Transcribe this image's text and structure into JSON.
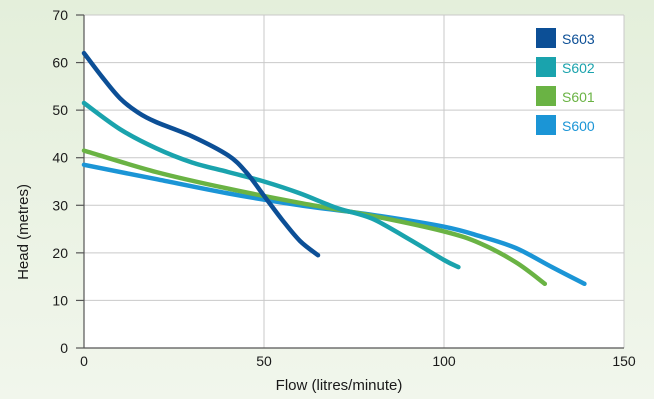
{
  "chart_data": {
    "type": "line",
    "xlabel": "Flow (litres/minute)",
    "ylabel": "Head (metres)",
    "xlim": [
      0,
      150
    ],
    "ylim": [
      0,
      70
    ],
    "x_ticks": [
      0,
      50,
      100,
      150
    ],
    "y_ticks": [
      0,
      10,
      20,
      30,
      40,
      50,
      60,
      70
    ],
    "grid": true,
    "legend_position": "top-right",
    "series": [
      {
        "name": "S603",
        "color": "#0c4f96",
        "points": [
          [
            0,
            62
          ],
          [
            5,
            57
          ],
          [
            10,
            52.5
          ],
          [
            15,
            49.5
          ],
          [
            20,
            47.5
          ],
          [
            30,
            44.5
          ],
          [
            40,
            40.5
          ],
          [
            45,
            37
          ],
          [
            50,
            32
          ],
          [
            55,
            27
          ],
          [
            60,
            22.5
          ],
          [
            65,
            19.5
          ]
        ]
      },
      {
        "name": "S602",
        "color": "#1aa3ad",
        "points": [
          [
            0,
            51.5
          ],
          [
            10,
            46
          ],
          [
            20,
            42
          ],
          [
            30,
            39
          ],
          [
            40,
            37
          ],
          [
            50,
            35
          ],
          [
            60,
            32.5
          ],
          [
            70,
            29.5
          ],
          [
            80,
            27.2
          ],
          [
            90,
            23
          ],
          [
            100,
            18.5
          ],
          [
            104,
            17
          ]
        ]
      },
      {
        "name": "S601",
        "color": "#6ab344",
        "points": [
          [
            0,
            41.5
          ],
          [
            20,
            37
          ],
          [
            40,
            33.5
          ],
          [
            60,
            30.5
          ],
          [
            80,
            27.8
          ],
          [
            100,
            24.5
          ],
          [
            110,
            22
          ],
          [
            120,
            18
          ],
          [
            128,
            13.5
          ]
        ]
      },
      {
        "name": "S600",
        "color": "#1b95d6",
        "points": [
          [
            0,
            38.5
          ],
          [
            20,
            35.5
          ],
          [
            40,
            32.5
          ],
          [
            60,
            30
          ],
          [
            80,
            28
          ],
          [
            100,
            25.5
          ],
          [
            110,
            23.5
          ],
          [
            120,
            21
          ],
          [
            130,
            17
          ],
          [
            139,
            13.5
          ]
        ]
      }
    ]
  }
}
